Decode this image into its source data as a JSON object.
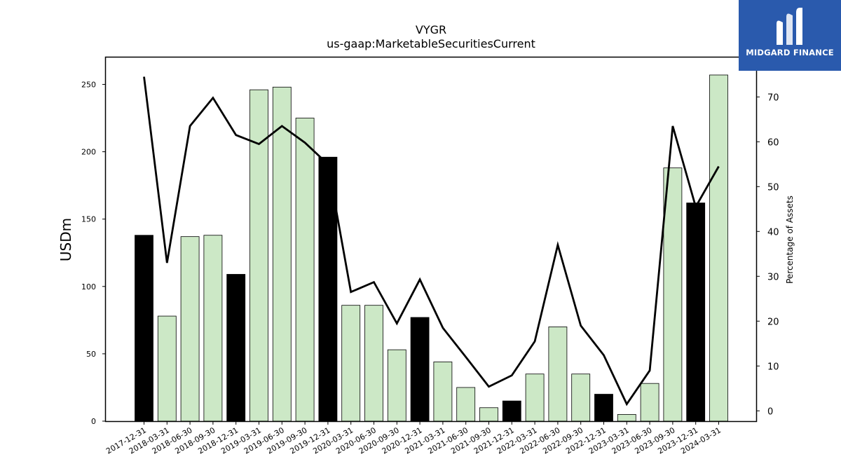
{
  "chart_data": {
    "type": "bar",
    "title": "VYGR",
    "subtitle": "us-gaap:MarketableSecuritiesCurrent",
    "ylabel": "USDm",
    "y2label": "Percentage of Assets",
    "ylim": [
      0,
      270
    ],
    "y2lim": [
      -2.3,
      78.8
    ],
    "yticks": [
      0,
      50,
      100,
      150,
      200,
      250
    ],
    "y2ticks": [
      0,
      10,
      20,
      30,
      40,
      50,
      60,
      70
    ],
    "categories": [
      "2017-12-31",
      "2018-03-31",
      "2018-06-30",
      "2018-09-30",
      "2018-12-31",
      "2019-03-31",
      "2019-06-30",
      "2019-09-30",
      "2019-12-31",
      "2020-03-31",
      "2020-06-30",
      "2020-09-30",
      "2020-12-31",
      "2021-03-31",
      "2021-06-30",
      "2021-09-30",
      "2021-12-31",
      "2022-03-31",
      "2022-06-30",
      "2022-09-30",
      "2022-12-31",
      "2023-03-31",
      "2023-06-30",
      "2023-09-30",
      "2023-12-31",
      "2024-03-31"
    ],
    "series": [
      {
        "type": "bar",
        "values": [
          138,
          78,
          137,
          138,
          109,
          246,
          248,
          225,
          196,
          86,
          86,
          53,
          77,
          44,
          25,
          10,
          15,
          35,
          70,
          35,
          20,
          5,
          28,
          188,
          162,
          257
        ],
        "colors": [
          "#000000",
          "#cce8c6",
          "#cce8c6",
          "#cce8c6",
          "#000000",
          "#cce8c6",
          "#cce8c6",
          "#cce8c6",
          "#000000",
          "#cce8c6",
          "#cce8c6",
          "#cce8c6",
          "#000000",
          "#cce8c6",
          "#cce8c6",
          "#cce8c6",
          "#000000",
          "#cce8c6",
          "#cce8c6",
          "#cce8c6",
          "#000000",
          "#cce8c6",
          "#cce8c6",
          "#cce8c6",
          "#000000",
          "#cce8c6"
        ]
      },
      {
        "type": "line",
        "axis": "right",
        "values": [
          74.5,
          33.0,
          63.5,
          69.8,
          61.5,
          59.5,
          63.5,
          59.8,
          55.0,
          26.5,
          28.7,
          19.5,
          29.3,
          18.5,
          12.0,
          5.4,
          7.9,
          15.5,
          37.0,
          19.0,
          12.4,
          1.5,
          9.0,
          63.5,
          45.5,
          54.5
        ],
        "color": "#000000"
      }
    ],
    "grid": false
  },
  "logo": {
    "text": "MIDGARD FINANCE",
    "background": "#2a5aad"
  }
}
